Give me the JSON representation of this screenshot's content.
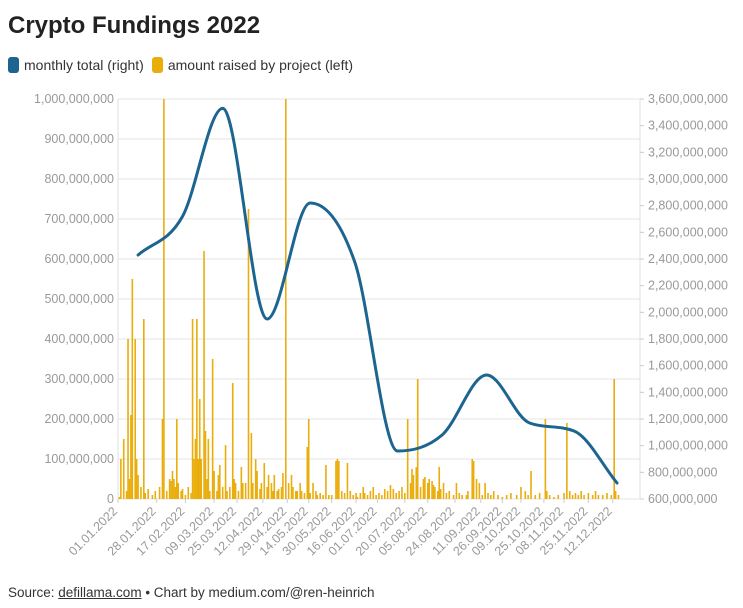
{
  "chart_data": {
    "type": "bar+line",
    "title": "Crypto Fundings 2022",
    "legend": [
      {
        "name": "monthly total (right)",
        "color": "#1d6590"
      },
      {
        "name": "amount raised by project (left)",
        "color": "#e9ad0c"
      }
    ],
    "left_axis": {
      "min": 0,
      "max": 1000000000,
      "ticks": [
        0,
        100000000,
        200000000,
        300000000,
        400000000,
        500000000,
        600000000,
        700000000,
        800000000,
        900000000,
        1000000000
      ],
      "tick_labels": [
        "0",
        "100,000,000",
        "200,000,000",
        "300,000,000",
        "400,000,000",
        "500,000,000",
        "600,000,000",
        "700,000,000",
        "800,000,000",
        "900,000,000",
        "1,000,000,000"
      ]
    },
    "right_axis": {
      "min": 600000000,
      "max": 3600000000,
      "tick_labels": [
        "600,000,000",
        "800,000,000",
        "1,000,000,000",
        "1,200,000,000",
        "1,400,000,000",
        "1,600,000,000",
        "1,800,000,000",
        "2,000,000,000",
        "2,200,000,000",
        "2,400,000,000",
        "2,600,000,000",
        "2,800,000,000",
        "3,000,000,000",
        "3,200,000,000",
        "3,400,000,000",
        "3,600,000,000"
      ]
    },
    "x_axis": {
      "start": "2022-01-01",
      "end": "2022-12-31",
      "tick_dates": [
        "2022-01-01",
        "2022-01-28",
        "2022-02-17",
        "2022-03-09",
        "2022-03-25",
        "2022-04-12",
        "2022-04-29",
        "2022-05-14",
        "2022-05-30",
        "2022-06-16",
        "2022-07-01",
        "2022-07-20",
        "2022-08-05",
        "2022-08-24",
        "2022-09-11",
        "2022-09-26",
        "2022-10-09",
        "2022-10-25",
        "2022-11-08",
        "2022-11-25",
        "2022-12-12"
      ],
      "tick_labels": [
        "01.01.2022",
        "28.01.2022",
        "17.02.2022",
        "09.03.2022",
        "25.03.2022",
        "12.04.2022",
        "29.04.2022",
        "14.05.2022",
        "30.05.2022",
        "16.06.2022",
        "01.07.2022",
        "20.07.2022",
        "05.08.2022",
        "24.08.2022",
        "11.09.2022",
        "26.09.2022",
        "09.10.2022",
        "25.10.2022",
        "08.11.2022",
        "25.11.2022",
        "12.12.2022"
      ]
    },
    "grid": true,
    "monthly_total": [
      {
        "x": "2022-01-15",
        "y": 2430000000
      },
      {
        "x": "2022-02-15",
        "y": 2720000000
      },
      {
        "x": "2022-03-15",
        "y": 3530000000
      },
      {
        "x": "2022-04-15",
        "y": 1950000000
      },
      {
        "x": "2022-05-15",
        "y": 2820000000
      },
      {
        "x": "2022-06-15",
        "y": 2380000000
      },
      {
        "x": "2022-07-15",
        "y": 960000000
      },
      {
        "x": "2022-08-15",
        "y": 1080000000
      },
      {
        "x": "2022-09-15",
        "y": 1530000000
      },
      {
        "x": "2022-10-15",
        "y": 1170000000
      },
      {
        "x": "2022-11-15",
        "y": 1110000000
      },
      {
        "x": "2022-12-15",
        "y": 720000000
      }
    ],
    "project_raises": [
      {
        "x": "2022-01-02",
        "y": 5000000
      },
      {
        "x": "2022-01-03",
        "y": 100000000
      },
      {
        "x": "2022-01-05",
        "y": 150000000
      },
      {
        "x": "2022-01-07",
        "y": 20000000
      },
      {
        "x": "2022-01-08",
        "y": 400000000
      },
      {
        "x": "2022-01-09",
        "y": 50000000
      },
      {
        "x": "2022-01-10",
        "y": 210000000
      },
      {
        "x": "2022-01-11",
        "y": 550000000
      },
      {
        "x": "2022-01-13",
        "y": 400000000
      },
      {
        "x": "2022-01-14",
        "y": 100000000
      },
      {
        "x": "2022-01-15",
        "y": 60000000
      },
      {
        "x": "2022-01-17",
        "y": 30000000
      },
      {
        "x": "2022-01-19",
        "y": 450000000
      },
      {
        "x": "2022-01-20",
        "y": 15000000
      },
      {
        "x": "2022-01-22",
        "y": 25000000
      },
      {
        "x": "2022-01-25",
        "y": 10000000
      },
      {
        "x": "2022-01-27",
        "y": 20000000
      },
      {
        "x": "2022-01-30",
        "y": 30000000
      },
      {
        "x": "2022-02-01",
        "y": 200000000
      },
      {
        "x": "2022-02-02",
        "y": 1000000000
      },
      {
        "x": "2022-02-04",
        "y": 20000000
      },
      {
        "x": "2022-02-06",
        "y": 50000000
      },
      {
        "x": "2022-02-07",
        "y": 45000000
      },
      {
        "x": "2022-02-08",
        "y": 70000000
      },
      {
        "x": "2022-02-09",
        "y": 50000000
      },
      {
        "x": "2022-02-10",
        "y": 30000000
      },
      {
        "x": "2022-02-11",
        "y": 200000000
      },
      {
        "x": "2022-02-12",
        "y": 40000000
      },
      {
        "x": "2022-02-14",
        "y": 20000000
      },
      {
        "x": "2022-02-15",
        "y": 25000000
      },
      {
        "x": "2022-02-17",
        "y": 10000000
      },
      {
        "x": "2022-02-19",
        "y": 30000000
      },
      {
        "x": "2022-02-21",
        "y": 15000000
      },
      {
        "x": "2022-02-22",
        "y": 450000000
      },
      {
        "x": "2022-02-23",
        "y": 100000000
      },
      {
        "x": "2022-02-24",
        "y": 150000000
      },
      {
        "x": "2022-02-25",
        "y": 450000000
      },
      {
        "x": "2022-02-26",
        "y": 100000000
      },
      {
        "x": "2022-02-27",
        "y": 250000000
      },
      {
        "x": "2022-02-28",
        "y": 100000000
      },
      {
        "x": "2022-03-02",
        "y": 620000000
      },
      {
        "x": "2022-03-03",
        "y": 170000000
      },
      {
        "x": "2022-03-04",
        "y": 50000000
      },
      {
        "x": "2022-03-05",
        "y": 150000000
      },
      {
        "x": "2022-03-06",
        "y": 20000000
      },
      {
        "x": "2022-03-08",
        "y": 350000000
      },
      {
        "x": "2022-03-09",
        "y": 70000000
      },
      {
        "x": "2022-03-11",
        "y": 20000000
      },
      {
        "x": "2022-03-12",
        "y": 60000000
      },
      {
        "x": "2022-03-13",
        "y": 85000000
      },
      {
        "x": "2022-03-15",
        "y": 30000000
      },
      {
        "x": "2022-03-17",
        "y": 135000000
      },
      {
        "x": "2022-03-18",
        "y": 20000000
      },
      {
        "x": "2022-03-20",
        "y": 30000000
      },
      {
        "x": "2022-03-22",
        "y": 290000000
      },
      {
        "x": "2022-03-23",
        "y": 50000000
      },
      {
        "x": "2022-03-24",
        "y": 40000000
      },
      {
        "x": "2022-03-26",
        "y": 20000000
      },
      {
        "x": "2022-03-28",
        "y": 80000000
      },
      {
        "x": "2022-03-29",
        "y": 40000000
      },
      {
        "x": "2022-03-31",
        "y": 40000000
      },
      {
        "x": "2022-04-02",
        "y": 725000000
      },
      {
        "x": "2022-04-04",
        "y": 165000000
      },
      {
        "x": "2022-04-05",
        "y": 40000000
      },
      {
        "x": "2022-04-07",
        "y": 100000000
      },
      {
        "x": "2022-04-08",
        "y": 70000000
      },
      {
        "x": "2022-04-10",
        "y": 25000000
      },
      {
        "x": "2022-04-11",
        "y": 40000000
      },
      {
        "x": "2022-04-13",
        "y": 90000000
      },
      {
        "x": "2022-04-15",
        "y": 30000000
      },
      {
        "x": "2022-04-16",
        "y": 60000000
      },
      {
        "x": "2022-04-18",
        "y": 40000000
      },
      {
        "x": "2022-04-19",
        "y": 20000000
      },
      {
        "x": "2022-04-20",
        "y": 60000000
      },
      {
        "x": "2022-04-22",
        "y": 20000000
      },
      {
        "x": "2022-04-23",
        "y": 25000000
      },
      {
        "x": "2022-04-25",
        "y": 30000000
      },
      {
        "x": "2022-04-26",
        "y": 65000000
      },
      {
        "x": "2022-04-28",
        "y": 1000000000
      },
      {
        "x": "2022-04-30",
        "y": 40000000
      },
      {
        "x": "2022-05-02",
        "y": 60000000
      },
      {
        "x": "2022-05-03",
        "y": 30000000
      },
      {
        "x": "2022-05-05",
        "y": 20000000
      },
      {
        "x": "2022-05-06",
        "y": 20000000
      },
      {
        "x": "2022-05-08",
        "y": 40000000
      },
      {
        "x": "2022-05-09",
        "y": 20000000
      },
      {
        "x": "2022-05-11",
        "y": 15000000
      },
      {
        "x": "2022-05-13",
        "y": 130000000
      },
      {
        "x": "2022-05-14",
        "y": 200000000
      },
      {
        "x": "2022-05-15",
        "y": 15000000
      },
      {
        "x": "2022-05-17",
        "y": 40000000
      },
      {
        "x": "2022-05-19",
        "y": 20000000
      },
      {
        "x": "2022-05-20",
        "y": 10000000
      },
      {
        "x": "2022-05-22",
        "y": 15000000
      },
      {
        "x": "2022-05-24",
        "y": 10000000
      },
      {
        "x": "2022-05-26",
        "y": 85000000
      },
      {
        "x": "2022-05-28",
        "y": 10000000
      },
      {
        "x": "2022-05-30",
        "y": 10000000
      },
      {
        "x": "2022-06-02",
        "y": 95000000
      },
      {
        "x": "2022-06-03",
        "y": 100000000
      },
      {
        "x": "2022-06-04",
        "y": 95000000
      },
      {
        "x": "2022-06-06",
        "y": 20000000
      },
      {
        "x": "2022-06-08",
        "y": 15000000
      },
      {
        "x": "2022-06-10",
        "y": 90000000
      },
      {
        "x": "2022-06-12",
        "y": 20000000
      },
      {
        "x": "2022-06-14",
        "y": 10000000
      },
      {
        "x": "2022-06-16",
        "y": 15000000
      },
      {
        "x": "2022-06-17",
        "y": 5000000
      },
      {
        "x": "2022-06-19",
        "y": 15000000
      },
      {
        "x": "2022-06-21",
        "y": 30000000
      },
      {
        "x": "2022-06-22",
        "y": 15000000
      },
      {
        "x": "2022-06-24",
        "y": 10000000
      },
      {
        "x": "2022-06-26",
        "y": 20000000
      },
      {
        "x": "2022-06-28",
        "y": 30000000
      },
      {
        "x": "2022-06-30",
        "y": 10000000
      },
      {
        "x": "2022-07-02",
        "y": 15000000
      },
      {
        "x": "2022-07-04",
        "y": 10000000
      },
      {
        "x": "2022-07-06",
        "y": 25000000
      },
      {
        "x": "2022-07-08",
        "y": 20000000
      },
      {
        "x": "2022-07-10",
        "y": 35000000
      },
      {
        "x": "2022-07-12",
        "y": 25000000
      },
      {
        "x": "2022-07-14",
        "y": 15000000
      },
      {
        "x": "2022-07-16",
        "y": 20000000
      },
      {
        "x": "2022-07-18",
        "y": 30000000
      },
      {
        "x": "2022-07-20",
        "y": 15000000
      },
      {
        "x": "2022-07-22",
        "y": 200000000
      },
      {
        "x": "2022-07-24",
        "y": 40000000
      },
      {
        "x": "2022-07-25",
        "y": 75000000
      },
      {
        "x": "2022-07-26",
        "y": 60000000
      },
      {
        "x": "2022-07-28",
        "y": 80000000
      },
      {
        "x": "2022-07-29",
        "y": 300000000
      },
      {
        "x": "2022-07-31",
        "y": 30000000
      },
      {
        "x": "2022-08-02",
        "y": 50000000
      },
      {
        "x": "2022-08-03",
        "y": 55000000
      },
      {
        "x": "2022-08-05",
        "y": 40000000
      },
      {
        "x": "2022-08-06",
        "y": 50000000
      },
      {
        "x": "2022-08-08",
        "y": 45000000
      },
      {
        "x": "2022-08-09",
        "y": 35000000
      },
      {
        "x": "2022-08-10",
        "y": 30000000
      },
      {
        "x": "2022-08-12",
        "y": 20000000
      },
      {
        "x": "2022-08-13",
        "y": 80000000
      },
      {
        "x": "2022-08-14",
        "y": 25000000
      },
      {
        "x": "2022-08-16",
        "y": 40000000
      },
      {
        "x": "2022-08-18",
        "y": 15000000
      },
      {
        "x": "2022-08-20",
        "y": 20000000
      },
      {
        "x": "2022-08-23",
        "y": 10000000
      },
      {
        "x": "2022-08-25",
        "y": 40000000
      },
      {
        "x": "2022-08-27",
        "y": 15000000
      },
      {
        "x": "2022-08-29",
        "y": 10000000
      },
      {
        "x": "2022-09-01",
        "y": 10000000
      },
      {
        "x": "2022-09-02",
        "y": 20000000
      },
      {
        "x": "2022-09-05",
        "y": 100000000
      },
      {
        "x": "2022-09-06",
        "y": 95000000
      },
      {
        "x": "2022-09-08",
        "y": 50000000
      },
      {
        "x": "2022-09-10",
        "y": 40000000
      },
      {
        "x": "2022-09-12",
        "y": 10000000
      },
      {
        "x": "2022-09-14",
        "y": 40000000
      },
      {
        "x": "2022-09-16",
        "y": 15000000
      },
      {
        "x": "2022-09-18",
        "y": 10000000
      },
      {
        "x": "2022-09-20",
        "y": 20000000
      },
      {
        "x": "2022-09-23",
        "y": 10000000
      },
      {
        "x": "2022-09-26",
        "y": 5000000
      },
      {
        "x": "2022-09-29",
        "y": 10000000
      },
      {
        "x": "2022-10-02",
        "y": 15000000
      },
      {
        "x": "2022-10-06",
        "y": 10000000
      },
      {
        "x": "2022-10-09",
        "y": 30000000
      },
      {
        "x": "2022-10-12",
        "y": 20000000
      },
      {
        "x": "2022-10-14",
        "y": 10000000
      },
      {
        "x": "2022-10-16",
        "y": 70000000
      },
      {
        "x": "2022-10-19",
        "y": 10000000
      },
      {
        "x": "2022-10-22",
        "y": 15000000
      },
      {
        "x": "2022-10-26",
        "y": 200000000
      },
      {
        "x": "2022-10-27",
        "y": 20000000
      },
      {
        "x": "2022-10-29",
        "y": 10000000
      },
      {
        "x": "2022-11-01",
        "y": 5000000
      },
      {
        "x": "2022-11-04",
        "y": 10000000
      },
      {
        "x": "2022-11-08",
        "y": 15000000
      },
      {
        "x": "2022-11-10",
        "y": 190000000
      },
      {
        "x": "2022-11-12",
        "y": 20000000
      },
      {
        "x": "2022-11-14",
        "y": 10000000
      },
      {
        "x": "2022-11-16",
        "y": 15000000
      },
      {
        "x": "2022-11-18",
        "y": 10000000
      },
      {
        "x": "2022-11-20",
        "y": 20000000
      },
      {
        "x": "2022-11-22",
        "y": 10000000
      },
      {
        "x": "2022-11-25",
        "y": 15000000
      },
      {
        "x": "2022-11-28",
        "y": 10000000
      },
      {
        "x": "2022-11-30",
        "y": 20000000
      },
      {
        "x": "2022-12-02",
        "y": 10000000
      },
      {
        "x": "2022-12-05",
        "y": 10000000
      },
      {
        "x": "2022-12-08",
        "y": 15000000
      },
      {
        "x": "2022-12-11",
        "y": 10000000
      },
      {
        "x": "2022-12-13",
        "y": 300000000
      },
      {
        "x": "2022-12-14",
        "y": 20000000
      },
      {
        "x": "2022-12-16",
        "y": 10000000
      }
    ]
  },
  "footer": {
    "source_label": "Source: ",
    "source_link": "defillama.com",
    "credit": " • Chart by medium.com/@ren-heinrich"
  }
}
